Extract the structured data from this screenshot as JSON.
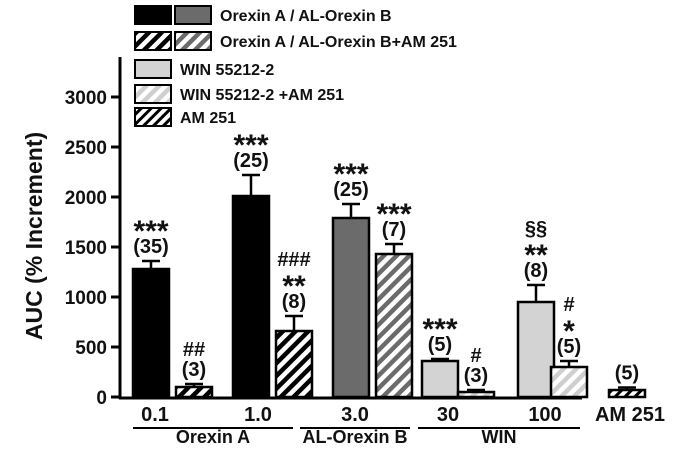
{
  "chart_data": {
    "type": "bar",
    "ylabel": "AUC (% Increment)",
    "ylim": [
      0,
      3400
    ],
    "yticks": [
      0,
      500,
      1000,
      1500,
      2000,
      2500,
      3000
    ],
    "categories": [
      "0.1",
      "1.0",
      "3.0",
      "30",
      "100",
      "AM 251"
    ],
    "groups": [
      {
        "label": "Orexin A",
        "categories": [
          "0.1",
          "1.0"
        ]
      },
      {
        "label": "AL-Orexin B",
        "categories": [
          "3.0"
        ]
      },
      {
        "label": "WIN",
        "categories": [
          "30",
          "100"
        ]
      }
    ],
    "legend": {
      "placement": "top",
      "entries": [
        {
          "label": "Orexin A / AL-Orexin B",
          "swatches": [
            "black",
            "darkgray"
          ]
        },
        {
          "label": "Orexin A / AL-Orexin B+AM 251",
          "swatches": [
            "black-hatch",
            "darkgray-hatch"
          ]
        },
        {
          "label": "WIN 55212-2",
          "swatches": [
            "lightgray"
          ]
        },
        {
          "label": "WIN 55212-2 +AM 251",
          "swatches": [
            "lightgray-hatch"
          ]
        },
        {
          "label": "AM 251",
          "swatches": [
            "white-hatch"
          ]
        }
      ]
    },
    "bars": [
      {
        "category": "0.1",
        "series": "Orexin A",
        "value": 1280,
        "error": 80,
        "fill": "black",
        "n_label": "(35)",
        "sig": [
          "***"
        ]
      },
      {
        "category": "0.1",
        "series": "Orexin A+AM 251",
        "value": 100,
        "error": 30,
        "fill": "black-hatch",
        "n_label": "(3)",
        "sig": [
          "##"
        ]
      },
      {
        "category": "1.0",
        "series": "Orexin A",
        "value": 2010,
        "error": 210,
        "fill": "black",
        "n_label": "(25)",
        "sig": [
          "***"
        ]
      },
      {
        "category": "1.0",
        "series": "Orexin A+AM 251",
        "value": 660,
        "error": 150,
        "fill": "black-hatch",
        "n_label": "(8)",
        "sig": [
          "###",
          "**"
        ]
      },
      {
        "category": "3.0",
        "series": "AL-Orexin B",
        "value": 1790,
        "error": 140,
        "fill": "darkgray",
        "n_label": "(25)",
        "sig": [
          "***"
        ]
      },
      {
        "category": "3.0",
        "series": "AL-Orexin B+AM 251",
        "value": 1430,
        "error": 100,
        "fill": "darkgray-hatch",
        "n_label": "(7)",
        "sig": [
          "***"
        ]
      },
      {
        "category": "30",
        "series": "WIN 55212-2",
        "value": 360,
        "error": 20,
        "fill": "lightgray",
        "n_label": "(5)",
        "sig": [
          "***"
        ]
      },
      {
        "category": "30",
        "series": "WIN 55212-2 +AM 251",
        "value": 50,
        "error": 20,
        "fill": "lightgray-hatch",
        "n_label": "(3)",
        "sig": [
          "#"
        ]
      },
      {
        "category": "100",
        "series": "WIN 55212-2",
        "value": 950,
        "error": 170,
        "fill": "lightgray",
        "n_label": "(8)",
        "sig": [
          "§§",
          "**"
        ]
      },
      {
        "category": "100",
        "series": "WIN 55212-2 +AM 251",
        "value": 300,
        "error": 60,
        "fill": "lightgray-hatch",
        "n_label": "(5)",
        "sig": [
          "#",
          "*"
        ]
      },
      {
        "category": "AM 251",
        "series": "AM 251",
        "value": 70,
        "error": 25,
        "fill": "white-hatch",
        "n_label": "(5)",
        "sig": []
      }
    ]
  }
}
